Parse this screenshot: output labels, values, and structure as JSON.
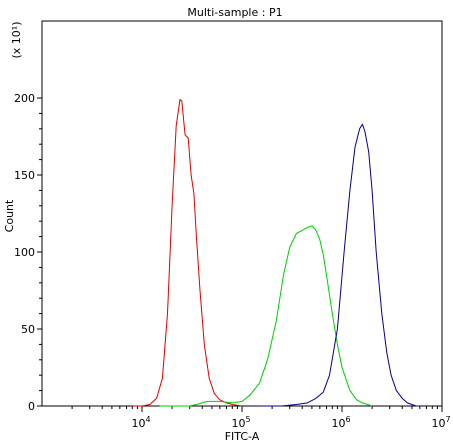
{
  "chart_data": {
    "type": "line",
    "title": "Multi-sample : P1",
    "xlabel": "FITC-A",
    "ylabel": "Count",
    "y_multiplier_label": "(x 10¹)",
    "x_scale": "log",
    "xlim": [
      1000,
      10000000
    ],
    "ylim": [
      0,
      250
    ],
    "x_ticks": [
      {
        "value": 10000,
        "base": "10",
        "exp": "4"
      },
      {
        "value": 100000,
        "base": "10",
        "exp": "5"
      },
      {
        "value": 1000000,
        "base": "10",
        "exp": "6"
      },
      {
        "value": 10000000,
        "base": "10",
        "exp": "7"
      }
    ],
    "y_ticks": [
      0,
      50,
      100,
      150,
      200
    ],
    "series": [
      {
        "color": "#dd0000",
        "points": [
          [
            8000,
            0
          ],
          [
            10000,
            0
          ],
          [
            12000,
            1
          ],
          [
            14000,
            5
          ],
          [
            16000,
            18
          ],
          [
            18000,
            60
          ],
          [
            20000,
            130
          ],
          [
            22000,
            182
          ],
          [
            24000,
            199
          ],
          [
            25000,
            198
          ],
          [
            27000,
            176
          ],
          [
            29000,
            174
          ],
          [
            31000,
            150
          ],
          [
            33000,
            138
          ],
          [
            35000,
            110
          ],
          [
            38000,
            75
          ],
          [
            42000,
            40
          ],
          [
            47000,
            18
          ],
          [
            53000,
            8
          ],
          [
            60000,
            4
          ],
          [
            70000,
            2
          ],
          [
            80000,
            1
          ],
          [
            100000,
            0
          ]
        ]
      },
      {
        "color": "#00cc00",
        "points": [
          [
            15000,
            0
          ],
          [
            30000,
            0
          ],
          [
            35000,
            1
          ],
          [
            45000,
            3
          ],
          [
            60000,
            3
          ],
          [
            80000,
            2
          ],
          [
            100000,
            3
          ],
          [
            120000,
            7
          ],
          [
            150000,
            15
          ],
          [
            180000,
            30
          ],
          [
            220000,
            55
          ],
          [
            260000,
            85
          ],
          [
            300000,
            103
          ],
          [
            350000,
            112
          ],
          [
            400000,
            114
          ],
          [
            450000,
            116
          ],
          [
            500000,
            117
          ],
          [
            550000,
            114
          ],
          [
            600000,
            108
          ],
          [
            650000,
            98
          ],
          [
            700000,
            85
          ],
          [
            800000,
            60
          ],
          [
            900000,
            40
          ],
          [
            1000000,
            25
          ],
          [
            1200000,
            10
          ],
          [
            1400000,
            4
          ],
          [
            1600000,
            2
          ],
          [
            2000000,
            0
          ]
        ]
      },
      {
        "color": "#00008b",
        "points": [
          [
            150000,
            0
          ],
          [
            250000,
            0
          ],
          [
            350000,
            1
          ],
          [
            450000,
            2
          ],
          [
            550000,
            5
          ],
          [
            650000,
            9
          ],
          [
            750000,
            20
          ],
          [
            900000,
            50
          ],
          [
            1050000,
            100
          ],
          [
            1200000,
            140
          ],
          [
            1350000,
            168
          ],
          [
            1500000,
            180
          ],
          [
            1600000,
            183
          ],
          [
            1700000,
            178
          ],
          [
            1850000,
            165
          ],
          [
            2000000,
            140
          ],
          [
            2200000,
            100
          ],
          [
            2500000,
            60
          ],
          [
            2800000,
            35
          ],
          [
            3100000,
            20
          ],
          [
            3500000,
            10
          ],
          [
            4000000,
            5
          ],
          [
            4500000,
            2
          ],
          [
            5500000,
            0
          ],
          [
            6000000,
            0
          ]
        ]
      }
    ]
  }
}
